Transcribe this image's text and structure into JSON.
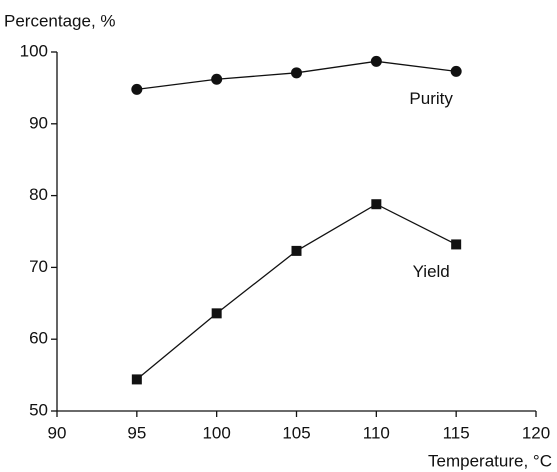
{
  "chart_data": {
    "type": "line",
    "y_label": "Percentage, %",
    "x_label": "Temperature, °C",
    "x": [
      95,
      100,
      105,
      110,
      115
    ],
    "series": [
      {
        "name": "Purity",
        "color": "#111111",
        "marker": "circle",
        "values": [
          94.8,
          96.2,
          97.1,
          98.7,
          97.3
        ]
      },
      {
        "name": "Yield",
        "color": "#111111",
        "marker": "square",
        "values": [
          54.4,
          63.6,
          72.3,
          78.8,
          73.2
        ]
      }
    ],
    "xlim": [
      90,
      120
    ],
    "xticks": [
      90,
      95,
      100,
      105,
      110,
      115,
      120
    ],
    "ylim": [
      50,
      100
    ],
    "yticks": [
      50,
      60,
      70,
      80,
      90,
      100
    ],
    "grid": false
  }
}
